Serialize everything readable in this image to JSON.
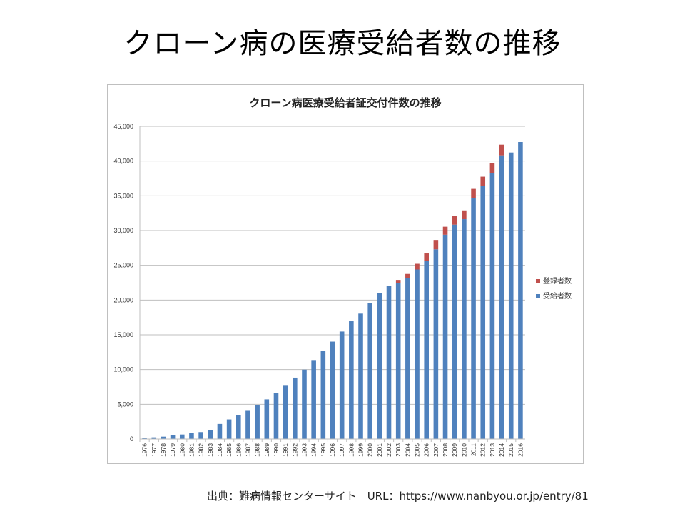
{
  "slide": {
    "title": "クローン病の医療受給者数の推移",
    "source": "出典：難病情報センターサイト　URL：https://www.nanbyou.or.jp/entry/81"
  },
  "chart_data": {
    "type": "bar",
    "stacked": true,
    "title": "クローン病医療受給者証交付件数の推移",
    "xlabel": "",
    "ylabel": "",
    "ylim": [
      0,
      45000
    ],
    "yticks": [
      0,
      5000,
      10000,
      15000,
      20000,
      25000,
      30000,
      35000,
      40000,
      45000
    ],
    "ytick_labels": [
      "0",
      "5,000",
      "10,000",
      "15,000",
      "20,000",
      "25,000",
      "30,000",
      "35,000",
      "40,000",
      "45,000"
    ],
    "grid": true,
    "legend_position": "right",
    "categories": [
      "1976",
      "1977",
      "1978",
      "1979",
      "1980",
      "1981",
      "1982",
      "1983",
      "1984",
      "1985",
      "1986",
      "1987",
      "1988",
      "1989",
      "1990",
      "1991",
      "1992",
      "1993",
      "1994",
      "1995",
      "1996",
      "1997",
      "1998",
      "1999",
      "2000",
      "2001",
      "2002",
      "2003",
      "2004",
      "2005",
      "2006",
      "2007",
      "2008",
      "2009",
      "2010",
      "2011",
      "2012",
      "2013",
      "2014",
      "2015",
      "2016"
    ],
    "series": [
      {
        "name": "受給者数",
        "color": "#4f81bd",
        "values": [
          100,
          240,
          340,
          520,
          650,
          830,
          1000,
          1270,
          2170,
          2820,
          3470,
          4060,
          4860,
          5710,
          6610,
          7670,
          8840,
          9990,
          11370,
          12680,
          14020,
          15470,
          16950,
          18050,
          19620,
          21030,
          22020,
          22400,
          23150,
          24400,
          25650,
          27300,
          29400,
          30850,
          31640,
          34640,
          36380,
          38260,
          40820,
          41230,
          42740
        ]
      },
      {
        "name": "登録者数",
        "color": "#c0504d",
        "values": [
          0,
          0,
          0,
          0,
          0,
          0,
          0,
          0,
          0,
          0,
          0,
          0,
          0,
          0,
          0,
          0,
          0,
          0,
          0,
          0,
          0,
          0,
          0,
          0,
          0,
          0,
          0,
          500,
          610,
          820,
          1060,
          1350,
          1150,
          1300,
          1260,
          1360,
          1370,
          1470,
          1540,
          0,
          0
        ]
      }
    ],
    "legend_order": [
      "登録者数",
      "受給者数"
    ]
  }
}
